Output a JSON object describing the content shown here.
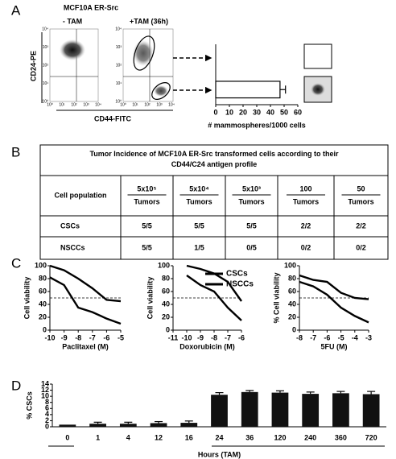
{
  "panels": [
    "A",
    "B",
    "C",
    "D"
  ],
  "panel_a": {
    "title": "MCF10A ER-Src",
    "conditions": [
      "- TAM",
      "+TAM (36h)"
    ],
    "y_label": "CD24-PE",
    "x_label": "CD44-FITC",
    "flow_ticks": [
      "10⁰",
      "10¹",
      "10²",
      "10³",
      "10⁴"
    ]
  },
  "table": {
    "title": "Tumor Incidence of MCF10A ER-Src transformed cells according to their CD44/C24 antigen profile",
    "row_header": "Cell population",
    "doses": [
      "5x10⁵",
      "5x10⁴",
      "5x10³",
      "100",
      "50"
    ],
    "dose_unit": "Tumors",
    "rows": [
      [
        "CSCs",
        "5/5",
        "5/5",
        "5/5",
        "2/2",
        "2/2"
      ],
      [
        "NSCCs",
        "5/5",
        "1/5",
        "0/5",
        "0/2",
        "0/2"
      ]
    ]
  },
  "chart_data": [
    {
      "type": "barh",
      "x_label": "# mammospheres/1000 cells",
      "categories": [
        null,
        null
      ],
      "values": [
        0,
        47
      ],
      "errors": [
        0,
        4
      ],
      "color": "#ffffff",
      "xlim": [
        0,
        60
      ],
      "xticks": [
        0,
        10,
        20,
        30,
        40,
        50,
        60
      ]
    },
    {
      "type": "line",
      "y_label": "Cell viability",
      "x_label": "Paclitaxel (M)",
      "x": [
        -10,
        -9,
        -8,
        -7,
        -6,
        -5
      ],
      "series": [
        {
          "name": "CSCs",
          "color": "#000000",
          "values": [
            100,
            93,
            80,
            65,
            47,
            45
          ]
        },
        {
          "name": "NSCCs",
          "color": "#000000",
          "values": [
            82,
            70,
            35,
            28,
            18,
            10
          ]
        }
      ],
      "xlim": [
        -10,
        -5
      ],
      "xticks": [
        -10,
        -9,
        -8,
        -7,
        -6,
        -5
      ],
      "ylim": [
        0,
        100
      ],
      "yticks": [
        0,
        20,
        40,
        60,
        80,
        100
      ],
      "reference_line": 50,
      "legend": "upper-right"
    },
    {
      "type": "line",
      "y_label": "Cell viability",
      "x_label": "Doxorubicin (M)",
      "x": [
        -10,
        -9,
        -8,
        -7,
        -6
      ],
      "series": [
        {
          "color": "#000000",
          "values": [
            100,
            95,
            88,
            75,
            45
          ]
        },
        {
          "color": "#000000",
          "values": [
            85,
            70,
            60,
            35,
            15
          ]
        }
      ],
      "xlim": [
        -11,
        -6
      ],
      "xticks": [
        -11,
        -10,
        -9,
        -8,
        -7,
        -6
      ],
      "ylim": [
        0,
        100
      ],
      "yticks": [
        0,
        20,
        40,
        60,
        80,
        100
      ],
      "reference_line": 50
    },
    {
      "type": "line",
      "y_label": "% Cell viability",
      "x_label": "5FU (M)",
      "x": [
        -8,
        -7,
        -6,
        -5,
        -4,
        -3
      ],
      "series": [
        {
          "color": "#000000",
          "values": [
            85,
            78,
            75,
            58,
            50,
            48
          ]
        },
        {
          "color": "#000000",
          "values": [
            75,
            68,
            55,
            35,
            22,
            12
          ]
        }
      ],
      "xlim": [
        -8,
        -3
      ],
      "xticks": [
        -8,
        -7,
        -6,
        -5,
        -4,
        -3
      ],
      "ylim": [
        0,
        100
      ],
      "yticks": [
        0,
        20,
        40,
        60,
        80,
        100
      ],
      "reference_line": 50
    },
    {
      "type": "bar",
      "y_label": "% CSCs",
      "x_label": "Hours (TAM)",
      "categories": [
        "0",
        "1",
        "4",
        "12",
        "16",
        "24",
        "36",
        "120",
        "240",
        "360",
        "720"
      ],
      "values": [
        0.7,
        1.0,
        1.0,
        1.2,
        1.3,
        10.5,
        11.4,
        11.2,
        10.8,
        11.0,
        10.7
      ],
      "errors": [
        0,
        0.5,
        0.5,
        0.5,
        0.6,
        0.7,
        0.5,
        0.6,
        0.6,
        0.6,
        0.9
      ],
      "color": "#111111",
      "ylim": [
        0,
        14
      ],
      "yticks": [
        0,
        2,
        4,
        6,
        8,
        10,
        12,
        14
      ]
    }
  ]
}
